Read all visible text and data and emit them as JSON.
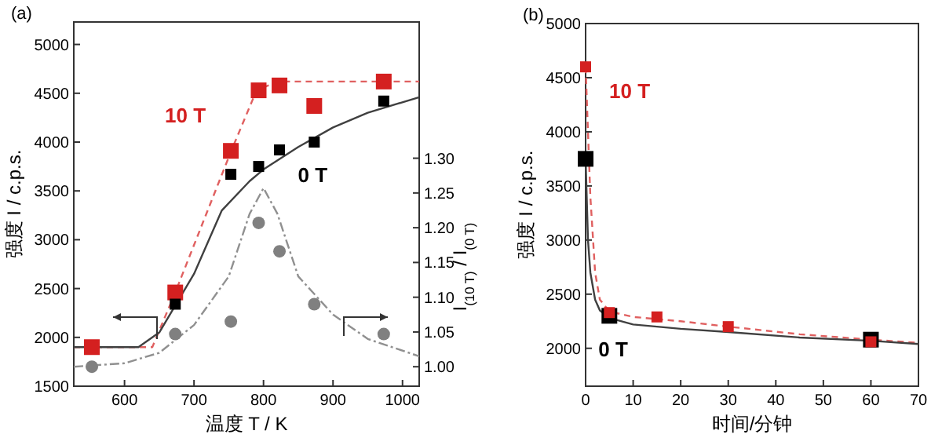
{
  "chart_data": [
    {
      "type": "scatter",
      "xlabel": "温度 T / K",
      "ylabel": "强度 I / c.p.s.",
      "y2label": "I$_{(10 T)}$ / I$_{(0 T)}$",
      "annotations": [
        "(a)"
      ],
      "xlim": [
        527,
        1024
      ],
      "xticks": [
        600,
        700,
        800,
        900,
        1000
      ],
      "ylim": [
        1500,
        5230
      ],
      "yticks": [
        1500,
        2000,
        2500,
        3000,
        3500,
        4000,
        4500,
        5000
      ],
      "y2lim": [
        0.972,
        1.496
      ],
      "y2ticks": [
        {
          "value": 1.0,
          "label": "1.00"
        },
        {
          "value": 1.05,
          "label": "1.05"
        },
        {
          "value": 1.1,
          "label": "1.10"
        },
        {
          "value": 1.15,
          "label": "1.15"
        },
        {
          "value": 1.2,
          "label": "1.20"
        },
        {
          "value": 1.25,
          "label": "1.25"
        },
        {
          "value": 1.3,
          "label": "1.30"
        }
      ],
      "grid": false,
      "series": [
        {
          "type": "line",
          "color": "#e06060",
          "line_style": "dashed",
          "x": [
            527,
            640,
            673,
            753,
            790,
            820,
            900,
            1024
          ],
          "values": [
            1900,
            1900,
            2460,
            3900,
            4530,
            4620,
            4620,
            4620
          ]
        },
        {
          "type": "line",
          "color": "#404040",
          "line_style": "solid",
          "x": [
            527,
            620,
            650,
            700,
            740,
            780,
            800,
            850,
            900,
            950,
            1024
          ],
          "values": [
            1900,
            1900,
            2050,
            2650,
            3300,
            3600,
            3720,
            3950,
            4150,
            4300,
            4460
          ]
        },
        {
          "type": "line",
          "color": "#909090",
          "line_style": "dotted",
          "axis": "y2",
          "x": [
            527,
            600,
            650,
            700,
            750,
            780,
            800,
            820,
            850,
            900,
            950,
            1024
          ],
          "values": [
            1.0,
            1.005,
            1.02,
            1.06,
            1.13,
            1.22,
            1.257,
            1.22,
            1.13,
            1.075,
            1.04,
            1.015
          ]
        },
        {
          "name": "10 T",
          "color": "#d42020",
          "marker": "square",
          "x": [
            553,
            673,
            753,
            793,
            823,
            873,
            973
          ],
          "values": [
            1900,
            2460,
            3910,
            4530,
            4580,
            4370,
            4620
          ]
        },
        {
          "name": "0 T",
          "color": "#000000",
          "marker": "square",
          "x": [
            673,
            753,
            793,
            823,
            873,
            973
          ],
          "values": [
            2340,
            3670,
            3750,
            3920,
            4000,
            4420
          ]
        },
        {
          "color": "#808080",
          "marker": "circle",
          "axis": "y2",
          "x": [
            553,
            673,
            753,
            793,
            823,
            873,
            973
          ],
          "values": [
            1.0,
            1.047,
            1.065,
            1.207,
            1.166,
            1.09,
            1.047
          ]
        }
      ]
    },
    {
      "type": "scatter",
      "xlabel": "时间/分钟",
      "ylabel": "强度 I / c.p.s.",
      "annotations": [
        "(b)"
      ],
      "xlim": [
        0,
        70
      ],
      "xticks": [
        0,
        10,
        20,
        30,
        40,
        50,
        60,
        70
      ],
      "ylim": [
        1650,
        5000
      ],
      "yticks": [
        2000,
        2500,
        3000,
        3500,
        4000,
        4500,
        5000
      ],
      "grid": false,
      "series": [
        {
          "type": "line",
          "color": "#e06060",
          "line_style": "dashed",
          "x": [
            0,
            0.5,
            1,
            2,
            3,
            5,
            10,
            20,
            30,
            45,
            60,
            70
          ],
          "values": [
            4600,
            4000,
            3400,
            2700,
            2450,
            2340,
            2290,
            2250,
            2200,
            2130,
            2080,
            2050
          ]
        },
        {
          "type": "line",
          "color": "#404040",
          "line_style": "solid",
          "x": [
            0,
            0.5,
            1,
            2,
            3,
            5,
            10,
            20,
            30,
            45,
            60,
            70
          ],
          "values": [
            3750,
            3000,
            2700,
            2450,
            2350,
            2280,
            2220,
            2180,
            2150,
            2100,
            2070,
            2040
          ]
        },
        {
          "name": "0 T",
          "color": "#000000",
          "marker": "square",
          "x": [
            0,
            5,
            60
          ],
          "values": [
            3750,
            2300,
            2080
          ]
        },
        {
          "name": "10 T",
          "color": "#d42020",
          "marker": "square",
          "x": [
            0,
            5,
            15,
            30,
            60
          ],
          "values": [
            4600,
            2330,
            2290,
            2200,
            2060
          ]
        }
      ]
    }
  ]
}
